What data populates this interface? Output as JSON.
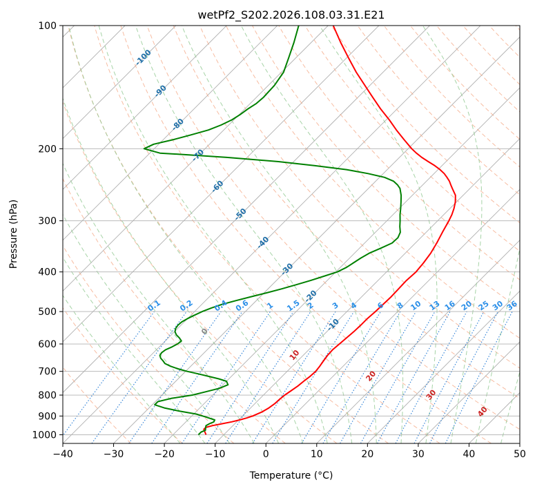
{
  "chart_data": {
    "type": "line",
    "title": "wetPf2_S202.2026.108.03.31.E21",
    "xlabel": "Temperature (°C)",
    "ylabel": "Pressure (hPa)",
    "xlim": [
      -40,
      50
    ],
    "ylim": [
      1050,
      100
    ],
    "y_scale": "log",
    "grid": true,
    "x_ticks": [
      -40,
      -30,
      -20,
      -10,
      0,
      10,
      20,
      30,
      40,
      50
    ],
    "y_ticks": [
      100,
      200,
      300,
      400,
      500,
      600,
      700,
      800,
      900,
      1000
    ],
    "skew_degrees": 45,
    "series": [
      {
        "color": "#ff0000",
        "p": [
          1000,
          990,
          980,
          970,
          960,
          950,
          940,
          930,
          920,
          910,
          900,
          880,
          860,
          840,
          820,
          800,
          780,
          760,
          740,
          720,
          700,
          680,
          660,
          640,
          620,
          600,
          580,
          560,
          540,
          520,
          500,
          480,
          460,
          440,
          420,
          400,
          380,
          360,
          340,
          320,
          300,
          290,
          280,
          270,
          260,
          250,
          245,
          240,
          235,
          230,
          225,
          220,
          215,
          210,
          205,
          200,
          190,
          180,
          170,
          160,
          150,
          140,
          130,
          120,
          110,
          100
        ],
        "t": [
          -13.5,
          -14,
          -14.5,
          -15,
          -15,
          -14,
          -12.5,
          -11,
          -9.8,
          -8.8,
          -8,
          -7,
          -6.4,
          -6.1,
          -6,
          -5.8,
          -5.4,
          -5,
          -4.8,
          -4.5,
          -4.4,
          -4.6,
          -4.9,
          -5.2,
          -5.3,
          -5.1,
          -4.9,
          -4.7,
          -4.6,
          -4.6,
          -4.4,
          -4.3,
          -4.2,
          -4.3,
          -4.4,
          -4.2,
          -4.5,
          -5,
          -5.8,
          -6.8,
          -7.8,
          -8.4,
          -9.2,
          -10.2,
          -11.5,
          -13.5,
          -14.5,
          -15.5,
          -16.7,
          -18,
          -19.6,
          -21.4,
          -23.5,
          -25.6,
          -27.5,
          -29.3,
          -32.6,
          -36,
          -39.4,
          -43.2,
          -47,
          -51,
          -55.3,
          -59.6,
          -64.2,
          -69
        ]
      },
      {
        "color": "#008000",
        "p": [
          1000,
          985,
          975,
          960,
          950,
          940,
          930,
          920,
          905,
          890,
          875,
          860,
          845,
          830,
          815,
          800,
          785,
          770,
          755,
          740,
          730,
          720,
          710,
          700,
          690,
          680,
          670,
          660,
          650,
          640,
          630,
          620,
          610,
          600,
          590,
          580,
          570,
          560,
          550,
          540,
          530,
          520,
          510,
          500,
          490,
          480,
          470,
          460,
          450,
          440,
          430,
          420,
          410,
          400,
          390,
          380,
          370,
          360,
          350,
          340,
          330,
          320,
          310,
          300,
          290,
          280,
          270,
          260,
          250,
          245,
          240,
          235,
          230,
          225,
          220,
          215,
          210,
          207,
          205,
          200,
          195,
          190,
          185,
          180,
          175,
          170,
          165,
          160,
          155,
          150,
          145,
          140,
          130,
          120,
          110,
          100
        ],
        "t": [
          -15,
          -15,
          -14.5,
          -15,
          -15.3,
          -15,
          -14.5,
          -14.7,
          -17,
          -19.5,
          -23.5,
          -27,
          -29.5,
          -29.5,
          -27.5,
          -24,
          -22,
          -20,
          -19,
          -20,
          -22,
          -24.5,
          -27,
          -29.7,
          -32,
          -34,
          -35.6,
          -36.5,
          -37.5,
          -38.2,
          -38.4,
          -38.2,
          -37.5,
          -37,
          -36.8,
          -37.8,
          -39,
          -39.9,
          -40.4,
          -40.6,
          -40.5,
          -40,
          -39.3,
          -38.5,
          -37.4,
          -36,
          -34,
          -31.8,
          -29.5,
          -27.3,
          -25.3,
          -23.3,
          -21.5,
          -19.7,
          -18.8,
          -18.3,
          -17.8,
          -17.1,
          -15.8,
          -14.6,
          -14.5,
          -15.1,
          -16.3,
          -17.4,
          -18.6,
          -19.7,
          -20.9,
          -22.2,
          -23.8,
          -25,
          -26.5,
          -29,
          -33,
          -38,
          -45,
          -53,
          -64,
          -72,
          -78,
          -82,
          -81,
          -78,
          -75.5,
          -73,
          -71.5,
          -70.4,
          -69.8,
          -69.4,
          -68.8,
          -68.6,
          -68.7,
          -68.8,
          -69.6,
          -71.4,
          -73.4,
          -75.8
        ]
      }
    ],
    "dry_adiabat_labels": [
      "-100",
      "-90",
      "-80",
      "-70",
      "-60",
      "-50",
      "-40",
      "-30",
      "-20",
      "-10"
    ],
    "mixing_ratio_labels": [
      "0.1",
      "0.2",
      "0.4",
      "0.6",
      "1",
      "1.5",
      "2",
      "3",
      "4",
      "6",
      "8",
      "10",
      "13",
      "16",
      "20",
      "25",
      "30",
      "36"
    ],
    "moist_adiabat_labels": [
      "0",
      "10",
      "20",
      "30",
      "40"
    ],
    "colors": {
      "temperature": "#ff0000",
      "dewpoint": "#008000",
      "isotherm_grid": "#b0b0b0",
      "dry_adiabat": "#f4a582",
      "moist_adiabat": "#90c890",
      "mixing_ratio": "#1f78d4",
      "dry_label": "#1f6fa8",
      "mixing_label": "#2b8fe8",
      "moist_label": "#cc2222"
    }
  }
}
